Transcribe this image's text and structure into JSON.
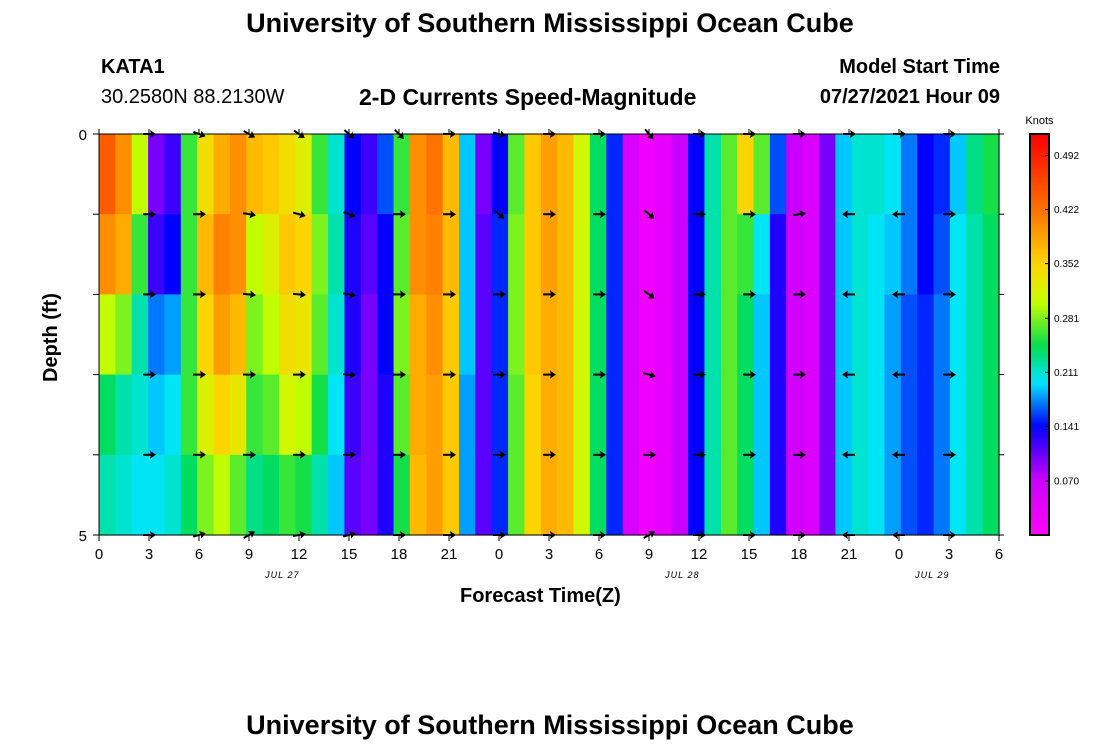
{
  "header": {
    "title_top": "University of Southern Mississippi Ocean Cube",
    "title_bottom": "University of Southern Mississippi Ocean Cube",
    "station": "KATA1",
    "coords": "30.2580N  88.2130W",
    "model_label": "Model Start Time",
    "model_time": "07/27/2021 Hour 09"
  },
  "chart_data": {
    "type": "heatmap",
    "title": "2-D Currents Speed-Magnitude",
    "xlabel": "Forecast Time(Z)",
    "ylabel": "Depth (ft)",
    "x_start_hour": 0,
    "x_end_hour": 54,
    "x_tick_labels": [
      "0",
      "3",
      "6",
      "9",
      "12",
      "15",
      "18",
      "21",
      "0",
      "3",
      "6",
      "9",
      "12",
      "15",
      "18",
      "21",
      "0",
      "3",
      "6"
    ],
    "x_tick_hours": [
      0,
      3,
      6,
      9,
      12,
      15,
      18,
      21,
      24,
      27,
      30,
      33,
      36,
      39,
      42,
      45,
      48,
      51,
      54
    ],
    "date_labels": [
      {
        "text": "JUL 27",
        "hour": 11
      },
      {
        "text": "JUL 28",
        "hour": 35
      },
      {
        "text": "JUL 29",
        "hour": 50
      }
    ],
    "y_labels": [
      "0",
      "5"
    ],
    "ylim": [
      0,
      5
    ],
    "depth_levels": 5,
    "colorbar": {
      "unit": "Knots",
      "min": 0,
      "max": 0.52,
      "tick_labels": [
        "0.492",
        "0.422",
        "0.352",
        "0.281",
        "0.211",
        "0.141",
        "0.070"
      ],
      "tick_values": [
        0.492,
        0.422,
        0.352,
        0.281,
        0.211,
        0.141,
        0.07
      ]
    },
    "speed_columns": [
      [
        0.44,
        0.4,
        0.3,
        0.24,
        0.22
      ],
      [
        0.4,
        0.38,
        0.28,
        0.22,
        0.21
      ],
      [
        0.3,
        0.26,
        0.22,
        0.21,
        0.2
      ],
      [
        0.1,
        0.12,
        0.17,
        0.19,
        0.2
      ],
      [
        0.12,
        0.14,
        0.18,
        0.2,
        0.21
      ],
      [
        0.26,
        0.26,
        0.26,
        0.26,
        0.24
      ],
      [
        0.34,
        0.37,
        0.35,
        0.32,
        0.28
      ],
      [
        0.38,
        0.41,
        0.39,
        0.35,
        0.3
      ],
      [
        0.4,
        0.4,
        0.37,
        0.33,
        0.27
      ],
      [
        0.37,
        0.3,
        0.28,
        0.26,
        0.23
      ],
      [
        0.36,
        0.32,
        0.3,
        0.27,
        0.24
      ],
      [
        0.34,
        0.36,
        0.34,
        0.31,
        0.26
      ],
      [
        0.32,
        0.35,
        0.33,
        0.3,
        0.25
      ],
      [
        0.26,
        0.28,
        0.27,
        0.25,
        0.22
      ],
      [
        0.21,
        0.22,
        0.21,
        0.2,
        0.19
      ],
      [
        0.14,
        0.13,
        0.13,
        0.12,
        0.11
      ],
      [
        0.12,
        0.11,
        0.1,
        0.1,
        0.1
      ],
      [
        0.16,
        0.14,
        0.14,
        0.13,
        0.13
      ],
      [
        0.26,
        0.27,
        0.28,
        0.27,
        0.25
      ],
      [
        0.4,
        0.4,
        0.38,
        0.38,
        0.37
      ],
      [
        0.42,
        0.41,
        0.4,
        0.39,
        0.39
      ],
      [
        0.37,
        0.37,
        0.36,
        0.36,
        0.36
      ],
      [
        0.19,
        0.19,
        0.19,
        0.18,
        0.18
      ],
      [
        0.1,
        0.11,
        0.11,
        0.11,
        0.11
      ],
      [
        0.14,
        0.15,
        0.15,
        0.15,
        0.15
      ],
      [
        0.27,
        0.28,
        0.28,
        0.27,
        0.27
      ],
      [
        0.36,
        0.36,
        0.36,
        0.35,
        0.35
      ],
      [
        0.39,
        0.39,
        0.38,
        0.38,
        0.38
      ],
      [
        0.37,
        0.37,
        0.37,
        0.37,
        0.37
      ],
      [
        0.31,
        0.31,
        0.31,
        0.31,
        0.31
      ],
      [
        0.24,
        0.24,
        0.24,
        0.24,
        0.24
      ],
      [
        0.15,
        0.15,
        0.15,
        0.15,
        0.15
      ],
      [
        0.05,
        0.05,
        0.05,
        0.05,
        0.05
      ],
      [
        0.02,
        0.02,
        0.02,
        0.02,
        0.02
      ],
      [
        0.03,
        0.03,
        0.03,
        0.03,
        0.03
      ],
      [
        0.07,
        0.07,
        0.07,
        0.07,
        0.07
      ],
      [
        0.14,
        0.14,
        0.14,
        0.14,
        0.14
      ],
      [
        0.22,
        0.22,
        0.22,
        0.22,
        0.22
      ],
      [
        0.27,
        0.27,
        0.27,
        0.27,
        0.27
      ],
      [
        0.35,
        0.26,
        0.24,
        0.24,
        0.24
      ],
      [
        0.27,
        0.2,
        0.19,
        0.19,
        0.19
      ],
      [
        0.16,
        0.13,
        0.13,
        0.13,
        0.13
      ],
      [
        0.07,
        0.06,
        0.06,
        0.06,
        0.06
      ],
      [
        0.05,
        0.05,
        0.05,
        0.05,
        0.05
      ],
      [
        0.1,
        0.1,
        0.1,
        0.1,
        0.1
      ],
      [
        0.19,
        0.19,
        0.19,
        0.19,
        0.19
      ],
      [
        0.21,
        0.21,
        0.21,
        0.21,
        0.21
      ],
      [
        0.21,
        0.2,
        0.2,
        0.2,
        0.2
      ],
      [
        0.2,
        0.19,
        0.18,
        0.18,
        0.18
      ],
      [
        0.17,
        0.17,
        0.16,
        0.16,
        0.16
      ],
      [
        0.14,
        0.14,
        0.15,
        0.15,
        0.15
      ],
      [
        0.15,
        0.16,
        0.17,
        0.17,
        0.17
      ],
      [
        0.19,
        0.2,
        0.2,
        0.2,
        0.2
      ],
      [
        0.23,
        0.22,
        0.22,
        0.22,
        0.22
      ],
      [
        0.25,
        0.24,
        0.24,
        0.24,
        0.24
      ]
    ],
    "vectors": {
      "hours": [
        3,
        6,
        9,
        12,
        15,
        18,
        21,
        24,
        27,
        30,
        33,
        36,
        39,
        42,
        45,
        48,
        51
      ],
      "depth_rows": [
        0,
        1,
        2,
        3,
        4,
        5
      ],
      "directions_deg": [
        [
          0,
          20,
          30,
          35,
          40,
          45,
          0,
          15,
          0,
          0,
          50,
          0,
          0,
          0,
          0,
          0,
          0
        ],
        [
          0,
          0,
          10,
          15,
          20,
          0,
          0,
          40,
          0,
          0,
          40,
          0,
          0,
          -10,
          180,
          180,
          0
        ],
        [
          0,
          0,
          5,
          5,
          10,
          0,
          0,
          0,
          0,
          0,
          35,
          0,
          0,
          0,
          180,
          180,
          0
        ],
        [
          0,
          0,
          0,
          0,
          5,
          0,
          0,
          0,
          0,
          0,
          15,
          0,
          0,
          0,
          180,
          180,
          0
        ],
        [
          0,
          0,
          0,
          0,
          0,
          0,
          0,
          0,
          0,
          0,
          0,
          0,
          0,
          0,
          180,
          180,
          0
        ],
        [
          0,
          -15,
          -30,
          -10,
          -15,
          0,
          0,
          0,
          0,
          0,
          -30,
          0,
          0,
          0,
          180,
          180,
          0
        ]
      ]
    }
  }
}
